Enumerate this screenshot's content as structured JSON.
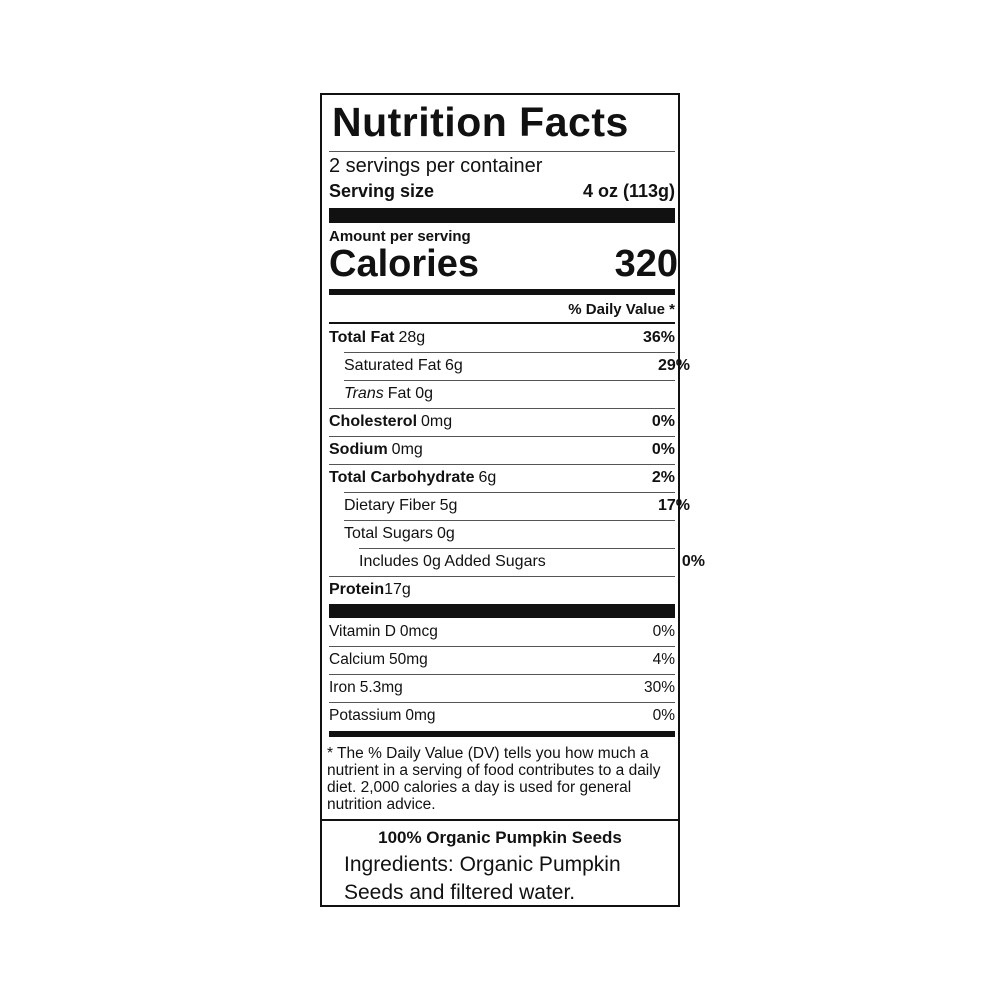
{
  "title": "Nutrition Facts",
  "servings": "2 servings per container",
  "serving_size": {
    "label": "Serving size",
    "value": "4 oz (113g)"
  },
  "amount_per_serving": "Amount per serving",
  "calories": {
    "label": "Calories",
    "value": "320"
  },
  "daily_value_header": "% Daily Value *",
  "nutrients": [
    {
      "name": "Total Fat",
      "amount": "28g",
      "dv": "36%"
    },
    {
      "name": "Saturated Fat",
      "amount": "6g",
      "dv": "29%"
    },
    {
      "name": "Trans",
      "amount": "Fat 0g"
    },
    {
      "name": "Cholesterol",
      "amount": "0mg",
      "dv": "0%"
    },
    {
      "name": "Sodium",
      "amount": "0mg",
      "dv": "0%"
    },
    {
      "name": "Total Carbohydrate",
      "amount": "6g",
      "dv": "2%"
    },
    {
      "name": "Dietary Fiber",
      "amount": "5g",
      "dv": "17%"
    },
    {
      "name": "Total Sugars",
      "amount": "0g"
    },
    {
      "name": "Includes 0g Added Sugars",
      "dv": "0%"
    },
    {
      "name": "Protein",
      "amount": "17g"
    }
  ],
  "vitamins": [
    {
      "name": "Vitamin D",
      "amount": "0mcg",
      "dv": "0%"
    },
    {
      "name": "Calcium",
      "amount": "50mg",
      "dv": "4%"
    },
    {
      "name": "Iron",
      "amount": "5.3mg",
      "dv": "30%"
    },
    {
      "name": "Potassium",
      "amount": "0mg",
      "dv": "0%"
    }
  ],
  "footnote": "* The % Daily Value (DV) tells you how much a nutrient in a serving of food contributes to a daily diet. 2,000 calories a day is used for general nutrition advice.",
  "product": "100% Organic Pumpkin Seeds",
  "ingredients": "Ingredients: Organic Pumpkin Seeds and filtered water."
}
